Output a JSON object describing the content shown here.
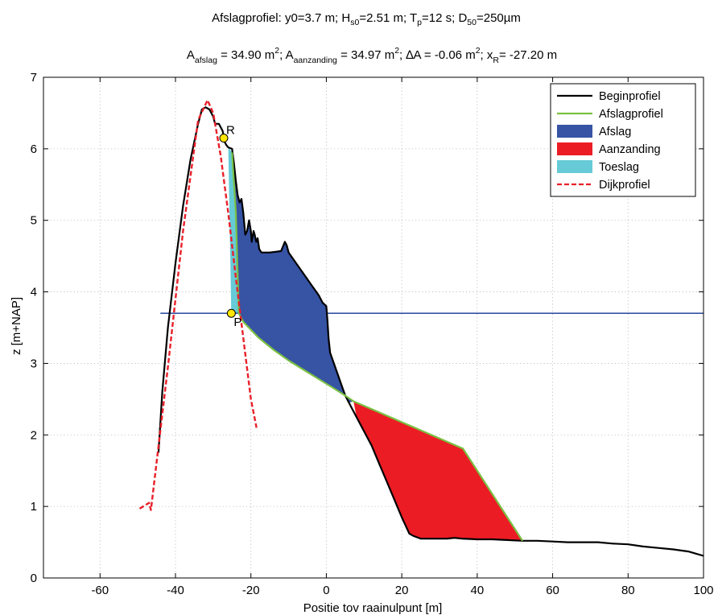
{
  "chart_data": {
    "type": "line",
    "title": {
      "line1": {
        "t1": "Afslagprofiel: y0=3.7 m; H",
        "t1_sub": "s0",
        "t2": "=2.51 m; T",
        "t2_sub": "p",
        "t3": "=12 s; D",
        "t3_sub": "50",
        "t4": "=250µm"
      },
      "line2": {
        "a": "A",
        "a_sub": "afslag",
        "b": " = 34.90 m",
        "b_sup": "2",
        "c": "; A",
        "c_sub": "aanzanding",
        "d": " = 34.97 m",
        "d_sup": "2",
        "e": "; ∆A = -0.06 m",
        "e_sup": "2",
        "f": "; x",
        "f_sub": "R",
        "g": "= -27.20 m"
      }
    },
    "xlabel": "Positie tov raainulpunt [m]",
    "ylabel": "z [m+NAP]",
    "xlim": [
      -75,
      100
    ],
    "ylim": [
      0,
      7
    ],
    "xticks": [
      -60,
      -40,
      -20,
      0,
      20,
      40,
      60,
      80,
      100
    ],
    "yticks": [
      0,
      1,
      2,
      3,
      4,
      5,
      6,
      7
    ],
    "grid": true,
    "legend_position": "top-right",
    "series": [
      {
        "name": "Beginprofiel",
        "kind": "line",
        "color": "#000000",
        "x": [
          -44.5,
          -43.5,
          -42,
          -40,
          -38,
          -36,
          -34,
          -33,
          -32,
          -31,
          -30,
          -29.5,
          -28.5,
          -27.5,
          -27,
          -26.5,
          -26,
          -25,
          -24.5,
          -24,
          -23.5,
          -23,
          -22.5,
          -22,
          -21.5,
          -21,
          -20.5,
          -20,
          -19.8,
          -19.3,
          -19,
          -18.6,
          -18.2,
          -17.8,
          -17.2,
          -16.5,
          -15,
          -13.5,
          -12,
          -11,
          -10.5,
          -10,
          -8,
          -6,
          -4,
          -2,
          -1,
          0,
          0.3,
          0.6,
          1,
          2,
          3,
          4,
          5,
          6,
          7,
          8,
          10,
          12,
          14,
          16,
          18,
          20,
          22,
          23,
          24,
          25,
          26,
          28,
          30,
          32,
          34,
          36,
          40,
          44,
          48,
          52,
          56,
          60,
          64,
          68,
          72,
          76,
          80,
          84,
          88,
          92,
          96,
          98,
          100
        ],
        "y": [
          1.75,
          2.6,
          3.5,
          4.4,
          5.2,
          5.85,
          6.35,
          6.55,
          6.58,
          6.55,
          6.45,
          6.35,
          6.35,
          6.25,
          6.1,
          6.05,
          6.02,
          6.0,
          5.8,
          5.55,
          5.35,
          5.25,
          5.3,
          5.1,
          4.8,
          4.85,
          5.0,
          4.85,
          4.7,
          4.85,
          4.8,
          4.7,
          4.75,
          4.6,
          4.55,
          4.55,
          4.55,
          4.56,
          4.57,
          4.7,
          4.65,
          4.55,
          4.4,
          4.25,
          4.1,
          3.95,
          3.85,
          3.8,
          3.6,
          3.35,
          3.15,
          3.0,
          2.85,
          2.7,
          2.55,
          2.45,
          2.35,
          2.25,
          2.05,
          1.85,
          1.6,
          1.35,
          1.1,
          0.85,
          0.62,
          0.59,
          0.57,
          0.55,
          0.55,
          0.55,
          0.55,
          0.55,
          0.56,
          0.55,
          0.54,
          0.54,
          0.53,
          0.52,
          0.52,
          0.51,
          0.5,
          0.5,
          0.5,
          0.48,
          0.47,
          0.44,
          0.42,
          0.4,
          0.37,
          0.34,
          0.31
        ]
      },
      {
        "name": "Afslagprofiel",
        "kind": "line",
        "color": "#7ac143",
        "x": [
          -25,
          -24,
          -23.2,
          -22,
          -18,
          -14,
          -10,
          -6,
          -2,
          2,
          5,
          7.2,
          36.2,
          52
        ],
        "y": [
          5.95,
          5.1,
          3.7,
          3.58,
          3.36,
          3.19,
          3.04,
          2.91,
          2.78,
          2.65,
          2.55,
          2.47,
          1.81,
          0.52
        ]
      },
      {
        "name": "Afslag",
        "kind": "area",
        "color": "#3653a4",
        "x": [
          -25,
          -24.5,
          -24,
          -23.5,
          -23,
          -22.5,
          -22,
          -21.5,
          -21,
          -20.5,
          -20,
          -19.8,
          -19.3,
          -19,
          -18.6,
          -18.2,
          -17.8,
          -17.2,
          -16.5,
          -15,
          -13.5,
          -12,
          -11,
          -10.5,
          -10,
          -8,
          -6,
          -4,
          -2,
          -1,
          0,
          0.3,
          0.6,
          1,
          2,
          3,
          4,
          5,
          6,
          7.2,
          5,
          2,
          -2,
          -6,
          -10,
          -14,
          -18,
          -22,
          -23.2,
          -24
        ],
        "y": [
          6.0,
          5.8,
          5.55,
          5.35,
          5.25,
          5.3,
          5.1,
          4.8,
          4.85,
          5.0,
          4.85,
          4.7,
          4.85,
          4.8,
          4.7,
          4.75,
          4.6,
          4.55,
          4.55,
          4.55,
          4.56,
          4.57,
          4.7,
          4.65,
          4.55,
          4.4,
          4.25,
          4.1,
          3.95,
          3.85,
          3.8,
          3.6,
          3.35,
          3.15,
          3.0,
          2.85,
          2.7,
          2.55,
          2.45,
          2.47,
          2.55,
          2.65,
          2.78,
          2.91,
          3.04,
          3.19,
          3.36,
          3.58,
          3.7,
          5.1
        ]
      },
      {
        "name": "Aanzanding",
        "kind": "area",
        "color": "#ec1c24",
        "x": [
          7.2,
          36.2,
          52,
          48,
          44,
          40,
          36,
          34,
          32,
          30,
          28,
          26,
          25,
          24,
          23,
          22,
          20,
          18,
          16,
          14,
          12,
          10,
          8
        ],
        "y": [
          2.47,
          1.81,
          0.52,
          0.53,
          0.54,
          0.54,
          0.55,
          0.56,
          0.55,
          0.55,
          0.55,
          0.55,
          0.55,
          0.57,
          0.59,
          0.62,
          0.85,
          1.1,
          1.35,
          1.6,
          1.85,
          2.05,
          2.25
        ]
      },
      {
        "name": "Toeslag",
        "kind": "area",
        "color": "#66cbd7",
        "x": [
          -26,
          -25,
          -24,
          -23.2,
          -25.2
        ],
        "y": [
          6.02,
          5.95,
          5.1,
          3.7,
          3.7
        ]
      },
      {
        "name": "Dijkprofiel",
        "kind": "dashed-line",
        "color": "#e8202a",
        "x": [
          -49.5,
          -47,
          -46.5,
          -42,
          -38,
          -34,
          -31.5,
          -30,
          -28,
          -26,
          -24,
          -22,
          -20,
          -18.5
        ],
        "y": [
          0.97,
          1.05,
          0.95,
          2.95,
          4.85,
          6.4,
          6.68,
          6.5,
          5.9,
          5.1,
          4.2,
          3.35,
          2.5,
          2.1
        ]
      }
    ],
    "water_level": {
      "y": 3.7,
      "x_from": -44,
      "x_to": 100,
      "color": "#3653a4"
    },
    "points": [
      {
        "label": "R",
        "x": -27.2,
        "y": 6.15,
        "color": "#ffe600"
      },
      {
        "label": "P",
        "x": -25.2,
        "y": 3.7,
        "color": "#ffe600"
      }
    ]
  }
}
